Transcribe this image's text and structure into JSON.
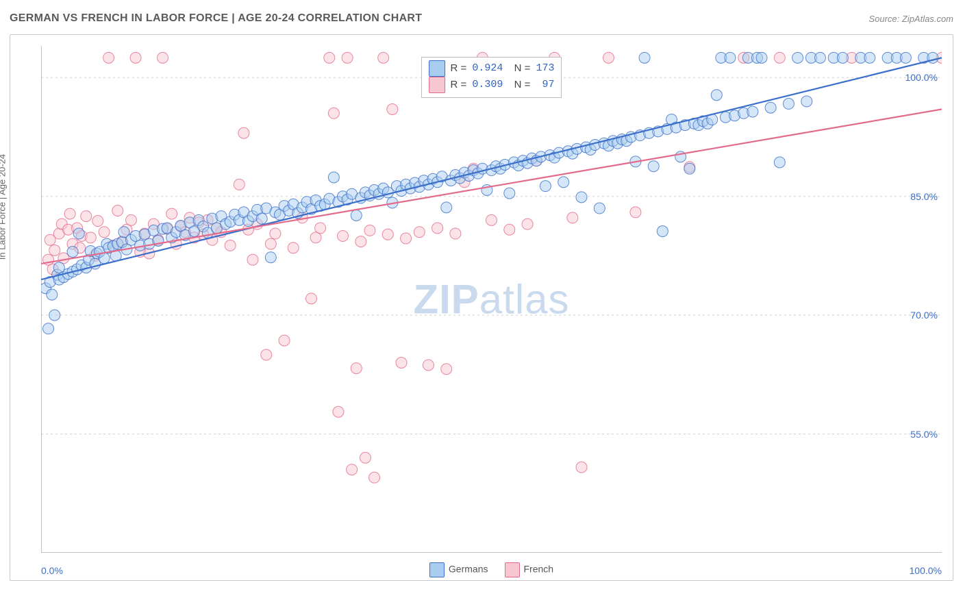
{
  "title": "GERMAN VS FRENCH IN LABOR FORCE | AGE 20-24 CORRELATION CHART",
  "source": "Source: ZipAtlas.com",
  "watermark": {
    "bold": "ZIP",
    "rest": "atlas"
  },
  "y_axis_label": "In Labor Force | Age 20-24",
  "x_range": {
    "min_label": "0.0%",
    "max_label": "100.0%",
    "color": "#3b6fc9"
  },
  "legend_bottom": [
    {
      "label": "Germans",
      "fill": "#a9cdf0",
      "stroke": "#3b6fc9"
    },
    {
      "label": "French",
      "fill": "#f7c7d1",
      "stroke": "#e46a8b"
    }
  ],
  "stats": [
    {
      "fill": "#a9cdf0",
      "stroke": "#3b6fc9",
      "r": "0.924",
      "n": "173",
      "color": "#2d63c4"
    },
    {
      "fill": "#f7c7d1",
      "stroke": "#e46a8b",
      "r": "0.309",
      "n": "97",
      "color": "#2d63c4"
    }
  ],
  "chart": {
    "type": "scatter-regression",
    "xlim": [
      0,
      100
    ],
    "ylim": [
      40,
      104
    ],
    "y_ticks": [
      {
        "v": 55,
        "label": "55.0%"
      },
      {
        "v": 70,
        "label": "70.0%"
      },
      {
        "v": 85,
        "label": "85.0%"
      },
      {
        "v": 100,
        "label": "100.0%"
      }
    ],
    "x_tick_step": 10,
    "grid_color": "#d0d0d0",
    "axis_color": "#888888",
    "ytick_label_color": "#3b6fc9",
    "background": "#ffffff",
    "marker_radius": 8,
    "marker_opacity": 0.5,
    "line_width": 2.2,
    "series": [
      {
        "name": "Germans",
        "fill": "#a9cdf0",
        "stroke": "#3b6fc9",
        "reg": {
          "x1": 0,
          "y1": 74.5,
          "x2": 100,
          "y2": 102.5
        },
        "points": [
          [
            0.5,
            73.4
          ],
          [
            0.8,
            68.3
          ],
          [
            1.0,
            74.2
          ],
          [
            1.2,
            72.6
          ],
          [
            1.5,
            70.0
          ],
          [
            1.8,
            75.1
          ],
          [
            2.0,
            74.5
          ],
          [
            2.0,
            76.0
          ],
          [
            2.5,
            74.8
          ],
          [
            3.0,
            75.2
          ],
          [
            3.5,
            75.5
          ],
          [
            3.5,
            78.0
          ],
          [
            4.0,
            75.8
          ],
          [
            4.2,
            80.3
          ],
          [
            4.5,
            76.3
          ],
          [
            5.0,
            76.0
          ],
          [
            5.3,
            77.0
          ],
          [
            5.5,
            78.1
          ],
          [
            6.0,
            76.5
          ],
          [
            6.2,
            77.8
          ],
          [
            6.5,
            78.0
          ],
          [
            7.0,
            77.2
          ],
          [
            7.3,
            79.0
          ],
          [
            7.5,
            78.5
          ],
          [
            8.0,
            78.7
          ],
          [
            8.3,
            77.5
          ],
          [
            8.5,
            79.0
          ],
          [
            9.0,
            79.2
          ],
          [
            9.2,
            80.5
          ],
          [
            9.5,
            78.3
          ],
          [
            10.0,
            79.5
          ],
          [
            10.5,
            80.0
          ],
          [
            11.0,
            78.8
          ],
          [
            11.5,
            80.2
          ],
          [
            12.0,
            79.0
          ],
          [
            12.5,
            80.7
          ],
          [
            13.0,
            79.4
          ],
          [
            13.5,
            80.9
          ],
          [
            14.0,
            81.0
          ],
          [
            14.5,
            79.8
          ],
          [
            15.0,
            80.5
          ],
          [
            15.5,
            81.3
          ],
          [
            16.0,
            80.1
          ],
          [
            16.5,
            81.7
          ],
          [
            17.0,
            80.6
          ],
          [
            17.5,
            82.0
          ],
          [
            18.0,
            81.2
          ],
          [
            18.5,
            80.4
          ],
          [
            19.0,
            82.2
          ],
          [
            19.5,
            81.0
          ],
          [
            20.0,
            82.5
          ],
          [
            20.5,
            81.5
          ],
          [
            21.0,
            81.8
          ],
          [
            21.5,
            82.7
          ],
          [
            22.0,
            82.0
          ],
          [
            22.5,
            83.0
          ],
          [
            23.0,
            81.9
          ],
          [
            23.5,
            82.5
          ],
          [
            24.0,
            83.3
          ],
          [
            24.5,
            82.2
          ],
          [
            25.0,
            83.5
          ],
          [
            25.5,
            77.3
          ],
          [
            26.0,
            83.0
          ],
          [
            26.5,
            82.7
          ],
          [
            27.0,
            83.8
          ],
          [
            27.5,
            83.2
          ],
          [
            28.0,
            84.0
          ],
          [
            28.5,
            82.9
          ],
          [
            29.0,
            83.6
          ],
          [
            29.5,
            84.3
          ],
          [
            30.0,
            83.4
          ],
          [
            30.5,
            84.5
          ],
          [
            31.0,
            83.8
          ],
          [
            31.5,
            84.0
          ],
          [
            32.0,
            84.7
          ],
          [
            32.5,
            87.4
          ],
          [
            33.0,
            84.3
          ],
          [
            33.5,
            85.0
          ],
          [
            34.0,
            84.6
          ],
          [
            34.5,
            85.3
          ],
          [
            35.0,
            82.6
          ],
          [
            35.5,
            84.8
          ],
          [
            36.0,
            85.5
          ],
          [
            36.5,
            85.1
          ],
          [
            37.0,
            85.8
          ],
          [
            37.5,
            85.3
          ],
          [
            38.0,
            86.0
          ],
          [
            38.5,
            85.5
          ],
          [
            39.0,
            84.2
          ],
          [
            39.5,
            86.3
          ],
          [
            40.0,
            85.7
          ],
          [
            40.5,
            86.5
          ],
          [
            41.0,
            86.0
          ],
          [
            41.5,
            86.7
          ],
          [
            42.0,
            86.2
          ],
          [
            42.5,
            87.0
          ],
          [
            43.0,
            86.5
          ],
          [
            43.5,
            87.2
          ],
          [
            44.0,
            86.8
          ],
          [
            44.5,
            87.5
          ],
          [
            45.0,
            83.6
          ],
          [
            45.5,
            87.0
          ],
          [
            46.0,
            87.7
          ],
          [
            46.5,
            87.3
          ],
          [
            47.0,
            88.0
          ],
          [
            47.5,
            87.6
          ],
          [
            48.0,
            88.3
          ],
          [
            48.5,
            87.9
          ],
          [
            49.0,
            88.5
          ],
          [
            49.5,
            85.8
          ],
          [
            50.0,
            88.3
          ],
          [
            50.5,
            88.8
          ],
          [
            51.0,
            88.5
          ],
          [
            51.5,
            89.0
          ],
          [
            52.0,
            85.4
          ],
          [
            52.5,
            89.3
          ],
          [
            53.0,
            88.9
          ],
          [
            53.5,
            89.5
          ],
          [
            54.0,
            89.2
          ],
          [
            54.5,
            89.8
          ],
          [
            55.0,
            89.5
          ],
          [
            55.5,
            90.0
          ],
          [
            56.0,
            86.3
          ],
          [
            56.5,
            90.2
          ],
          [
            57.0,
            89.9
          ],
          [
            57.5,
            90.5
          ],
          [
            58.0,
            86.8
          ],
          [
            58.5,
            90.7
          ],
          [
            59.0,
            90.4
          ],
          [
            59.5,
            91.0
          ],
          [
            60.0,
            84.9
          ],
          [
            60.5,
            91.2
          ],
          [
            61.0,
            90.9
          ],
          [
            61.5,
            91.5
          ],
          [
            62.0,
            83.5
          ],
          [
            62.5,
            91.7
          ],
          [
            63.0,
            91.4
          ],
          [
            63.5,
            92.0
          ],
          [
            64.0,
            91.7
          ],
          [
            64.5,
            92.2
          ],
          [
            65.0,
            92.0
          ],
          [
            65.5,
            92.5
          ],
          [
            66.0,
            89.4
          ],
          [
            66.5,
            92.7
          ],
          [
            67.0,
            102.5
          ],
          [
            67.5,
            93.0
          ],
          [
            68.0,
            88.8
          ],
          [
            68.5,
            93.2
          ],
          [
            69.0,
            80.6
          ],
          [
            69.5,
            93.5
          ],
          [
            70.0,
            94.7
          ],
          [
            70.5,
            93.7
          ],
          [
            71.0,
            90.0
          ],
          [
            71.5,
            94.0
          ],
          [
            72.0,
            88.5
          ],
          [
            72.5,
            94.2
          ],
          [
            73.0,
            94.0
          ],
          [
            73.5,
            94.5
          ],
          [
            74.0,
            94.2
          ],
          [
            74.5,
            94.7
          ],
          [
            75.0,
            97.8
          ],
          [
            75.5,
            102.5
          ],
          [
            76.0,
            95.0
          ],
          [
            76.5,
            102.5
          ],
          [
            77.0,
            95.2
          ],
          [
            78.0,
            95.5
          ],
          [
            78.5,
            102.5
          ],
          [
            79.0,
            95.7
          ],
          [
            79.5,
            102.5
          ],
          [
            80.0,
            102.5
          ],
          [
            81.0,
            96.2
          ],
          [
            82.0,
            89.3
          ],
          [
            83.0,
            96.7
          ],
          [
            84.0,
            102.5
          ],
          [
            85.0,
            97.0
          ],
          [
            85.5,
            102.5
          ],
          [
            86.5,
            102.5
          ],
          [
            88.0,
            102.5
          ],
          [
            89.0,
            102.5
          ],
          [
            91.0,
            102.5
          ],
          [
            92.0,
            102.5
          ],
          [
            94.0,
            102.5
          ],
          [
            95.0,
            102.5
          ],
          [
            96.0,
            102.5
          ],
          [
            98.0,
            102.5
          ],
          [
            99.0,
            102.5
          ]
        ]
      },
      {
        "name": "French",
        "fill": "#f7c7d1",
        "stroke": "#e46a8b",
        "reg": {
          "x1": 0,
          "y1": 76.5,
          "x2": 100,
          "y2": 96.0
        },
        "points": [
          [
            0.8,
            77.0
          ],
          [
            1.0,
            79.5
          ],
          [
            1.3,
            75.8
          ],
          [
            1.5,
            78.2
          ],
          [
            2.0,
            80.3
          ],
          [
            2.3,
            81.5
          ],
          [
            2.5,
            77.2
          ],
          [
            3.0,
            80.8
          ],
          [
            3.2,
            82.8
          ],
          [
            3.5,
            79.0
          ],
          [
            4.0,
            81.0
          ],
          [
            4.3,
            78.5
          ],
          [
            4.5,
            80.0
          ],
          [
            5.0,
            82.5
          ],
          [
            5.5,
            79.8
          ],
          [
            6.0,
            77.5
          ],
          [
            6.3,
            81.9
          ],
          [
            7.0,
            80.5
          ],
          [
            7.5,
            102.5
          ],
          [
            8.0,
            78.8
          ],
          [
            8.5,
            83.2
          ],
          [
            9.0,
            79.3
          ],
          [
            9.5,
            80.8
          ],
          [
            10.0,
            82.0
          ],
          [
            10.5,
            102.5
          ],
          [
            11.0,
            78.0
          ],
          [
            11.5,
            80.3
          ],
          [
            12.0,
            77.8
          ],
          [
            12.5,
            81.5
          ],
          [
            13.0,
            79.5
          ],
          [
            13.5,
            102.5
          ],
          [
            14.0,
            80.9
          ],
          [
            14.5,
            82.8
          ],
          [
            15.0,
            79.0
          ],
          [
            15.5,
            81.2
          ],
          [
            16.0,
            80.5
          ],
          [
            16.5,
            82.3
          ],
          [
            17.0,
            79.8
          ],
          [
            17.5,
            81.7
          ],
          [
            18.0,
            80.2
          ],
          [
            18.5,
            82.0
          ],
          [
            19.0,
            79.5
          ],
          [
            19.5,
            81.0
          ],
          [
            20.0,
            80.5
          ],
          [
            21.0,
            78.8
          ],
          [
            22.0,
            86.5
          ],
          [
            22.5,
            93.0
          ],
          [
            23.0,
            80.8
          ],
          [
            23.5,
            77.0
          ],
          [
            24.0,
            81.5
          ],
          [
            25.0,
            65.0
          ],
          [
            25.5,
            79.0
          ],
          [
            26.0,
            80.3
          ],
          [
            27.0,
            66.8
          ],
          [
            28.0,
            78.5
          ],
          [
            29.0,
            82.3
          ],
          [
            30.0,
            72.1
          ],
          [
            30.5,
            79.8
          ],
          [
            31.0,
            81.0
          ],
          [
            32.0,
            102.5
          ],
          [
            32.5,
            95.5
          ],
          [
            33.0,
            57.8
          ],
          [
            33.5,
            80.0
          ],
          [
            34.0,
            102.5
          ],
          [
            34.5,
            50.5
          ],
          [
            35.0,
            63.3
          ],
          [
            35.5,
            79.3
          ],
          [
            36.0,
            52.0
          ],
          [
            36.5,
            80.7
          ],
          [
            37.0,
            49.5
          ],
          [
            38.0,
            102.5
          ],
          [
            38.5,
            80.2
          ],
          [
            39.0,
            96.0
          ],
          [
            40.0,
            64.0
          ],
          [
            40.5,
            79.7
          ],
          [
            42.0,
            80.5
          ],
          [
            43.0,
            63.7
          ],
          [
            44.0,
            81.0
          ],
          [
            45.0,
            63.2
          ],
          [
            46.0,
            80.3
          ],
          [
            47.0,
            86.8
          ],
          [
            48.0,
            88.5
          ],
          [
            49.0,
            102.5
          ],
          [
            50.0,
            82.0
          ],
          [
            52.0,
            80.8
          ],
          [
            54.0,
            81.5
          ],
          [
            55.0,
            89.5
          ],
          [
            57.0,
            102.5
          ],
          [
            59.0,
            82.3
          ],
          [
            60.0,
            50.8
          ],
          [
            63.0,
            102.5
          ],
          [
            66.0,
            83.0
          ],
          [
            72.0,
            88.7
          ],
          [
            78.0,
            102.5
          ],
          [
            82.0,
            102.5
          ],
          [
            90.0,
            102.5
          ],
          [
            100.0,
            102.5
          ]
        ]
      }
    ]
  }
}
